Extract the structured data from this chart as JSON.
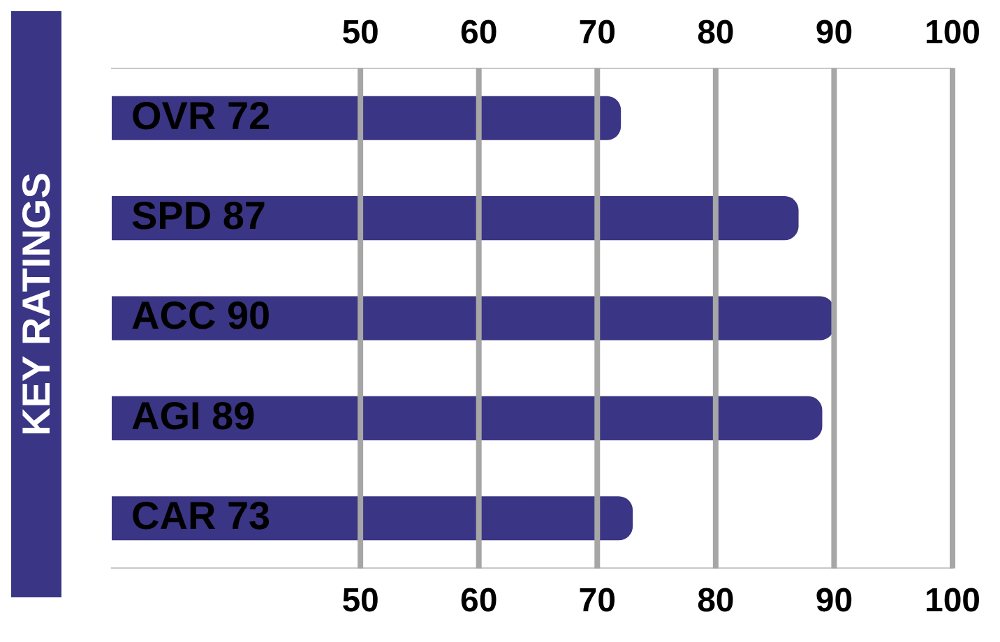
{
  "chart_data": {
    "type": "bar",
    "orientation": "horizontal",
    "title": "KEY RATINGS",
    "categories": [
      "OVR 72",
      "SPD 87",
      "ACC 90",
      "AGI 89",
      "CAR 73"
    ],
    "values": [
      72,
      87,
      90,
      89,
      73
    ],
    "color": "#3b3585",
    "xlim": [
      29,
      100
    ],
    "xticks": [
      50,
      60,
      70,
      80,
      90,
      100
    ],
    "x2lim": [
      29,
      100
    ],
    "x2ticks": [
      50,
      60,
      70,
      80,
      90,
      100
    ],
    "grid": "x"
  }
}
